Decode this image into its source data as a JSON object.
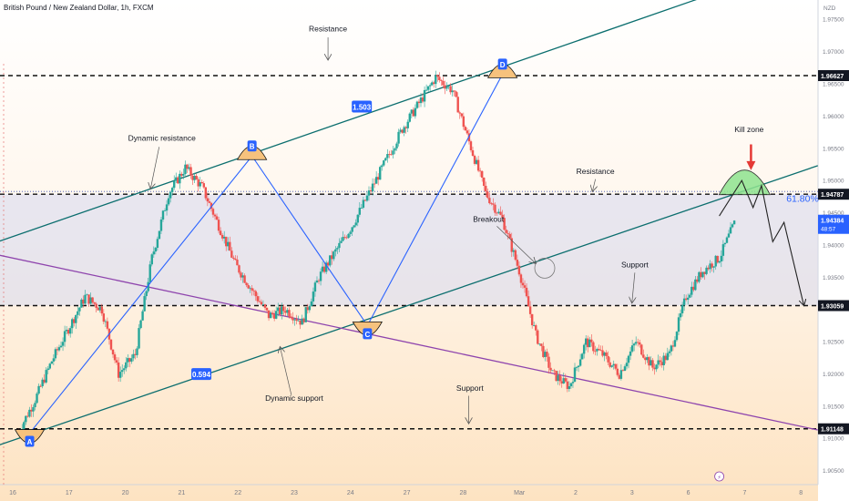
{
  "header": {
    "symbol_title": "British Pound / New Zealand Dollar, 1h, FXCM",
    "currency": "NZD"
  },
  "chart_data": {
    "type": "candlestick",
    "title": "British Pound / New Zealand Dollar, 1h, FXCM",
    "ylim": [
      1.9035,
      1.979
    ],
    "y_ticks": [
      "1.97500",
      "1.97000",
      "1.96500",
      "1.96000",
      "1.95500",
      "1.95000",
      "1.94500",
      "1.94000",
      "1.93500",
      "1.92500",
      "1.92000",
      "1.91500",
      "1.91000",
      "1.90500"
    ],
    "x_ticks": [
      "16",
      "17",
      "20",
      "21",
      "22",
      "23",
      "24",
      "27",
      "28",
      "Mar",
      "2",
      "3",
      "6",
      "7",
      "8"
    ],
    "price_lines": [
      {
        "label": "1.96627",
        "value": 1.96627
      },
      {
        "label": "1.94787",
        "value": 1.94787
      },
      {
        "label": "1.93059",
        "value": 1.93059
      },
      {
        "label": "1.91148",
        "value": 1.91148
      }
    ],
    "current_price": {
      "label": "1.94384",
      "value": 1.94384,
      "countdown": "48:57"
    },
    "fib_label": "61.80%",
    "pattern_points": [
      {
        "label": "A",
        "x": 0.3,
        "price": 1.9108
      },
      {
        "label": "B",
        "x": 4.25,
        "price": 1.9538
      },
      {
        "label": "C",
        "x": 6.3,
        "price": 1.9275
      },
      {
        "label": "D",
        "x": 8.7,
        "price": 1.9665
      }
    ],
    "ratios": [
      {
        "label": "1.503",
        "x": 6.2,
        "price": 1.9614
      },
      {
        "label": "0.594",
        "x": 3.35,
        "price": 1.9199
      }
    ],
    "annotations": [
      {
        "text": "Resistance",
        "x": 5.6,
        "price": 1.9731
      },
      {
        "text": "Dynamic resistance",
        "x": 2.65,
        "price": 1.9562
      },
      {
        "text": "Kill zone",
        "x": 13.08,
        "price": 1.9575
      },
      {
        "text": "Resistance",
        "x": 10.35,
        "price": 1.951
      },
      {
        "text": "Breakout",
        "x": 8.45,
        "price": 1.9436
      },
      {
        "text": "Support",
        "x": 11.05,
        "price": 1.9365
      },
      {
        "text": "Dynamic support",
        "x": 5.0,
        "price": 1.9158
      },
      {
        "text": "Support",
        "x": 8.12,
        "price": 1.9174
      }
    ],
    "path_prices": [
      1.911,
      1.916,
      1.922,
      1.927,
      1.932,
      1.93,
      1.92,
      1.923,
      1.938,
      1.948,
      1.952,
      1.949,
      1.943,
      1.937,
      1.933,
      1.929,
      1.93,
      1.928,
      1.935,
      1.939,
      1.943,
      1.948,
      1.953,
      1.958,
      1.962,
      1.966,
      1.964,
      1.956,
      1.948,
      1.944,
      1.936,
      1.926,
      1.92,
      1.918,
      1.925,
      1.923,
      1.92,
      1.925,
      1.921,
      1.923,
      1.932,
      1.936,
      1.938,
      1.944
    ]
  }
}
